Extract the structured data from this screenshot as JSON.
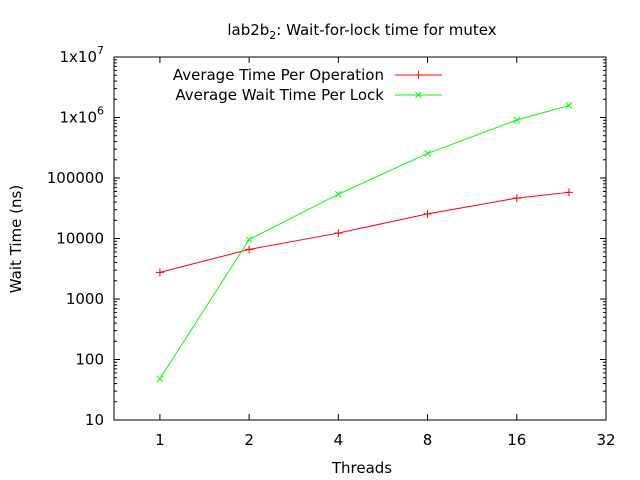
{
  "chart_data": {
    "type": "line",
    "title": "lab2b",
    "title_subscript": "2",
    "title_suffix": ": Wait-for-lock time for mutex",
    "xlabel": "Threads",
    "ylabel": "Wait Time (ns)",
    "x_scale": "log2",
    "y_scale": "log10",
    "xlim": [
      0.7,
      32
    ],
    "ylim": [
      10,
      10000000
    ],
    "x_ticks": [
      {
        "value": 1,
        "label": "1"
      },
      {
        "value": 2,
        "label": "2"
      },
      {
        "value": 4,
        "label": "4"
      },
      {
        "value": 8,
        "label": "8"
      },
      {
        "value": 16,
        "label": "16"
      },
      {
        "value": 32,
        "label": "32"
      }
    ],
    "y_ticks": [
      {
        "value": 10,
        "label": "10"
      },
      {
        "value": 100,
        "label": "100"
      },
      {
        "value": 1000,
        "label": "1000"
      },
      {
        "value": 10000,
        "label": "10000"
      },
      {
        "value": 100000,
        "label": "100000"
      },
      {
        "value": 1000000,
        "label": "1x10",
        "sup": "6"
      },
      {
        "value": 10000000,
        "label": "1x10",
        "sup": "7"
      }
    ],
    "grid": false,
    "legend_position": "top-left",
    "series": [
      {
        "name": "Average Time Per Operation",
        "color": "#ff0000",
        "marker": "plus",
        "x": [
          1,
          2,
          4,
          8,
          16,
          24
        ],
        "y": [
          2750,
          6600,
          12300,
          25500,
          46500,
          58000
        ]
      },
      {
        "name": "Average Wait Time Per Lock",
        "color": "#00ff00",
        "marker": "cross",
        "x": [
          1,
          2,
          4,
          8,
          16,
          24
        ],
        "y": [
          48,
          9600,
          54000,
          255000,
          910000,
          1580000
        ]
      }
    ]
  }
}
